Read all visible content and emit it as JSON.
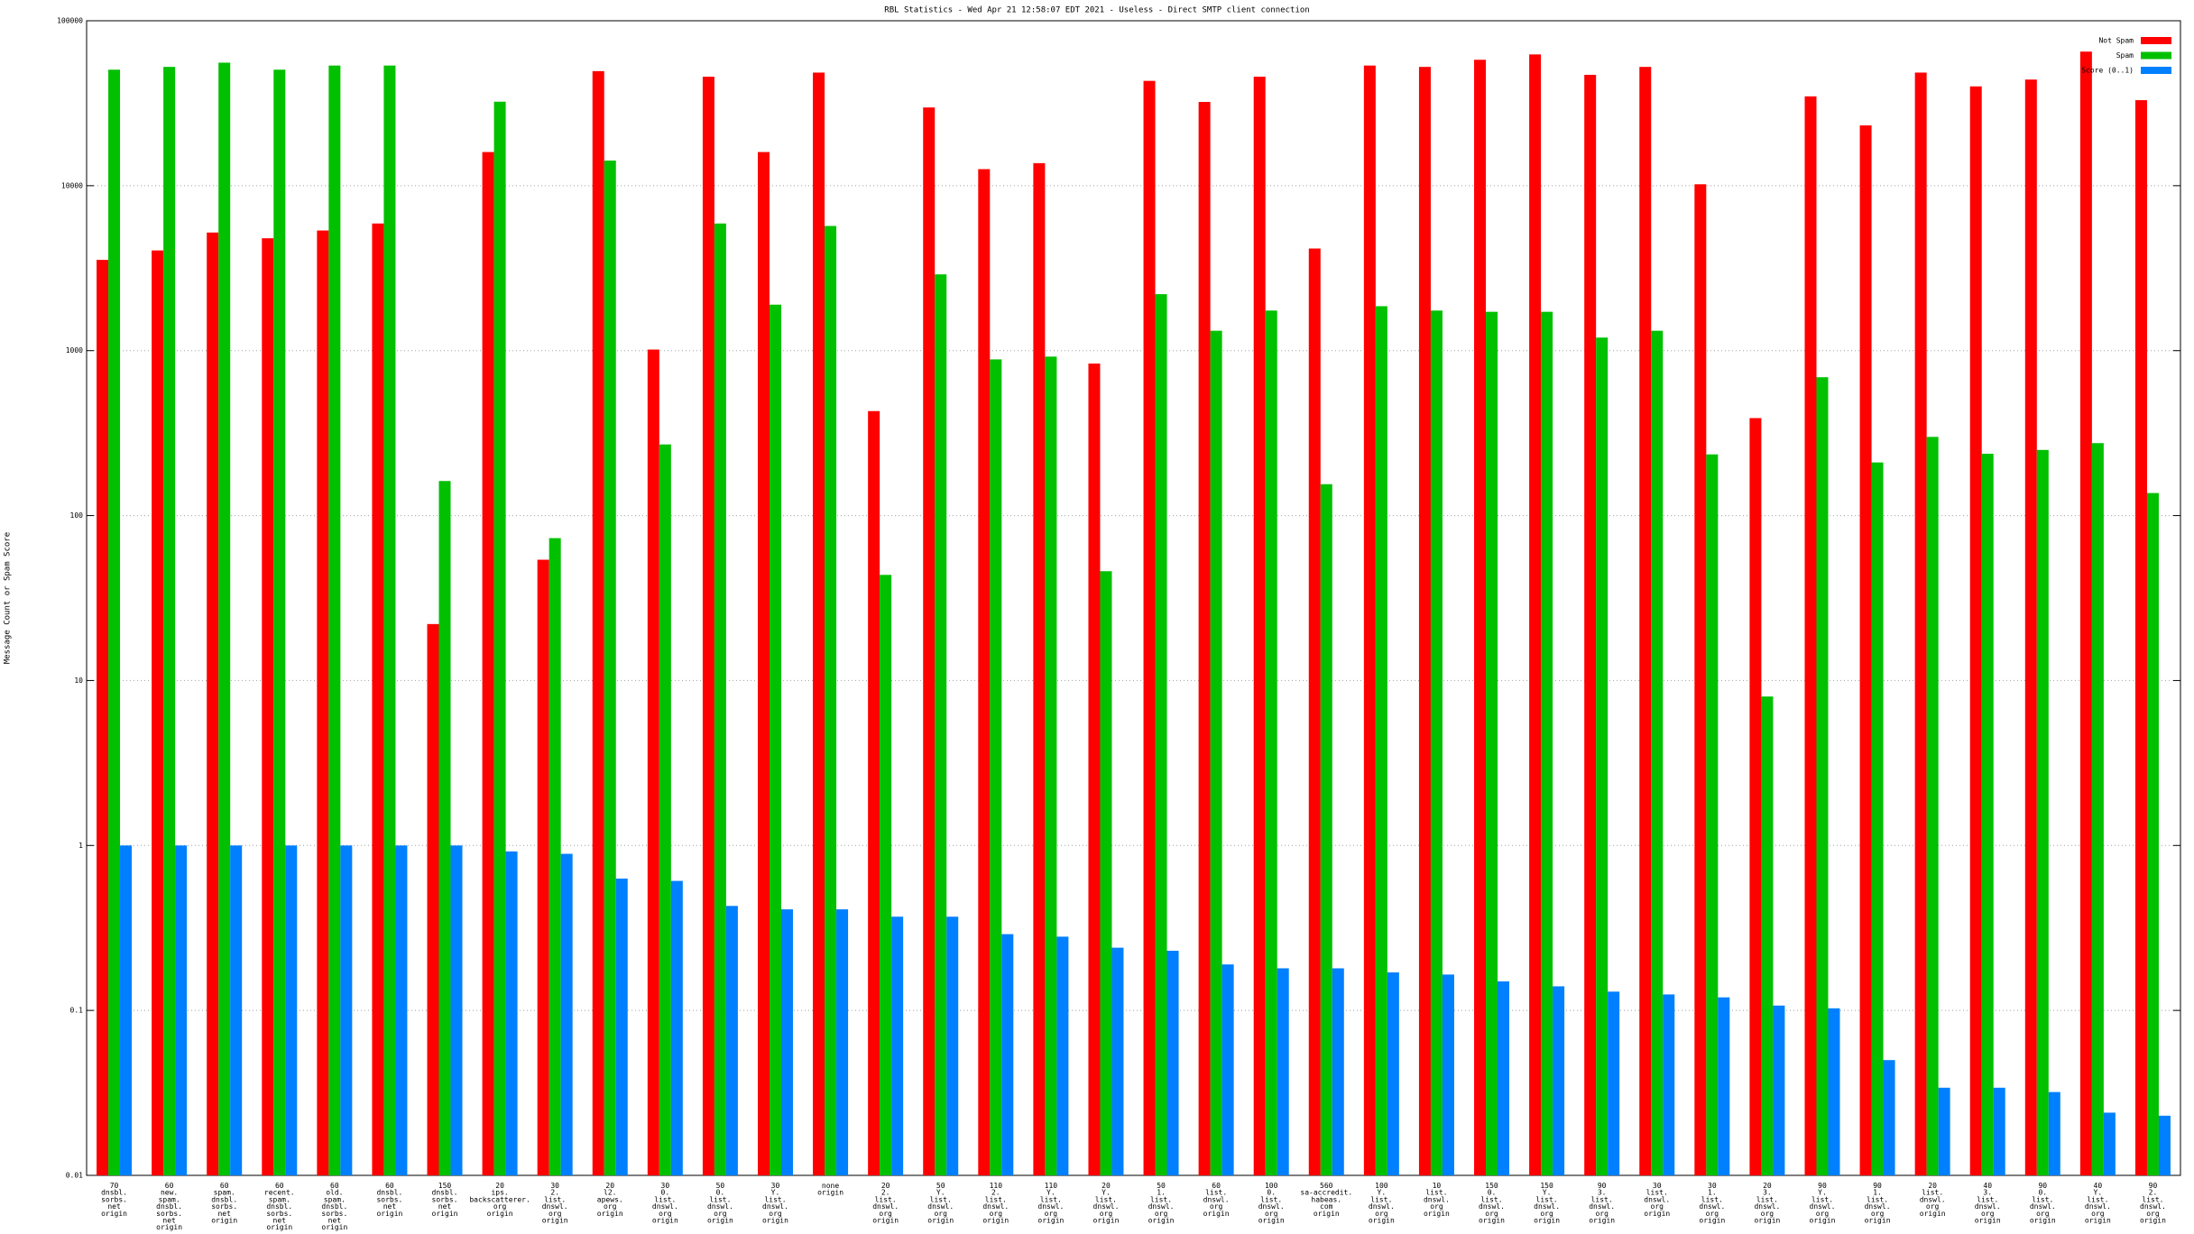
{
  "chart_data": {
    "type": "bar",
    "title": "RBL Statistics - Wed Apr 21 12:58:07 EDT 2021 - Useless - Direct SMTP client connection",
    "y_label": "Message Count or Spam Score",
    "log_scale": true,
    "grid": true,
    "legend": "top-right",
    "ylim": [
      0.01,
      100000
    ],
    "yticks": [
      0.01,
      0.1,
      1,
      10,
      100,
      1000,
      10000,
      100000
    ],
    "categories": [
      "70\ndnsbl.\nsorbs.\nnet\norigin",
      "60\nnew.\nspam.\ndnsbl.\nsorbs.\nnet\norigin",
      "60\nspam.\ndnsbl.\nsorbs.\nnet\norigin",
      "60\nrecent.\nspam.\ndnsbl.\nsorbs.\nnet\norigin",
      "60\nold.\nspam.\ndnsbl.\nsorbs.\nnet\norigin",
      "60\ndnsbl.\nsorbs.\nnet\norigin",
      "150\ndnsbl.\nsorbs.\nnet\norigin",
      "20\nips.\nbackscatterer.\norg\norigin",
      "30\n2.\nlist.\ndnswl.\norg\norigin",
      "20\nl2.\napews.\norg\norigin",
      "30\n0.\nlist.\ndnswl.\norg\norigin",
      "50\n0.\nlist.\ndnswl.\norg\norigin",
      "30\nY.\nlist.\ndnswl.\norg\norigin",
      "none\norigin",
      "20\n2.\nlist.\ndnswl.\norg\norigin",
      "50\nY.\nlist.\ndnswl.\norg\norigin",
      "110\n2.\nlist.\ndnswl.\norg\norigin",
      "110\nY.\nlist.\ndnswl.\norg\norigin",
      "20\nY.\nlist.\ndnswl.\norg\norigin",
      "50\n1.\nlist.\ndnswl.\norg\norigin",
      "60\nlist.\ndnswl.\norg\norigin",
      "100\n0.\nlist.\ndnswl.\norg\norigin",
      "560\nsa-accredit.\nhabeas.\ncom\norigin",
      "100\nY.\nlist.\ndnswl.\norg\norigin",
      "10\nlist.\ndnswl.\norg\norigin",
      "150\n0.\nlist.\ndnswl.\norg\norigin",
      "150\nY.\nlist.\ndnswl.\norg\norigin",
      "90\n3.\nlist.\ndnswl.\norg\norigin",
      "30\nlist.\ndnswl.\norg\norigin",
      "30\n1.\nlist.\ndnswl.\norg\norigin",
      "20\n3.\nlist.\ndnswl.\norg\norigin",
      "90\nY.\nlist.\ndnswl.\norg\norigin",
      "90\n1.\nlist.\ndnswl.\norg\norigin",
      "20\nlist.\ndnswl.\norg\norigin",
      "40\n3.\nlist.\ndnswl.\norg\norigin",
      "90\n0.\nlist.\ndnswl.\norg\norigin",
      "40\nY.\nlist.\ndnswl.\norg\norigin",
      "90\n2.\nlist.\ndnswl.\norg\norigin"
    ],
    "series": [
      {
        "name": "Not Spam",
        "color": "#ff0000",
        "values": [
          3550,
          4050,
          5200,
          4800,
          5350,
          5900,
          22,
          16000,
          54,
          49500,
          1015,
          45800,
          16000,
          48500,
          430,
          29800,
          12600,
          13700,
          835,
          43200,
          32200,
          45800,
          4160,
          53500,
          52500,
          58000,
          62500,
          47000,
          52500,
          10200,
          390,
          34800,
          23200,
          48500,
          40000,
          44000,
          65000,
          33000
        ]
      },
      {
        "name": "Spam",
        "color": "#00c000",
        "values": [
          50500,
          52500,
          55700,
          50500,
          53500,
          53500,
          162,
          32300,
          73,
          14200,
          270,
          5900,
          1900,
          5700,
          43.7,
          2900,
          885,
          920,
          46,
          2200,
          1320,
          1750,
          155,
          1860,
          1750,
          1720,
          1720,
          1200,
          1320,
          235,
          8,
          690,
          210,
          300,
          237,
          250,
          275,
          137
        ]
      },
      {
        "name": "Score (0..1)",
        "color": "#0080ff",
        "values": [
          1,
          1,
          1,
          1,
          1,
          1,
          1,
          0.92,
          0.89,
          0.63,
          0.61,
          0.43,
          0.41,
          0.41,
          0.37,
          0.37,
          0.29,
          0.28,
          0.24,
          0.23,
          0.19,
          0.18,
          0.18,
          0.17,
          0.165,
          0.15,
          0.14,
          0.13,
          0.125,
          0.12,
          0.107,
          0.103,
          0.05,
          0.034,
          0.034,
          0.032,
          0.024,
          0.023
        ]
      }
    ]
  }
}
